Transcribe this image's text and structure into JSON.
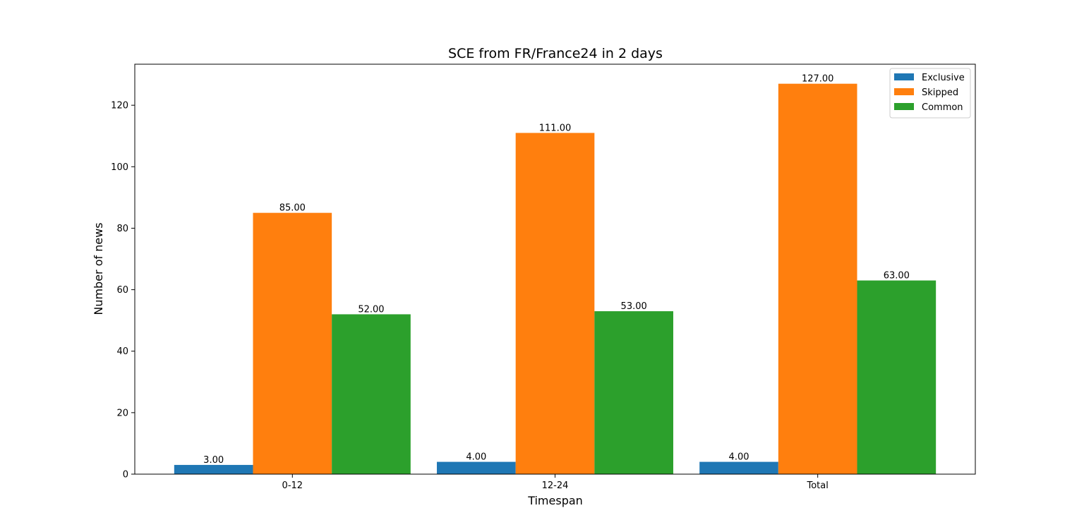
{
  "chart_data": {
    "type": "bar",
    "title": "SCE from FR/France24 in 2 days",
    "xlabel": "Timespan",
    "ylabel": "Number of news",
    "categories": [
      "0-12",
      "12-24",
      "Total"
    ],
    "series": [
      {
        "name": "Exclusive",
        "color": "#1f77b4",
        "values": [
          3,
          4,
          4
        ],
        "labels": [
          "3.00",
          "4.00",
          "4.00"
        ]
      },
      {
        "name": "Skipped",
        "color": "#ff7f0e",
        "values": [
          85,
          111,
          127
        ],
        "labels": [
          "85.00",
          "111.00",
          "127.00"
        ]
      },
      {
        "name": "Common",
        "color": "#2ca02c",
        "values": [
          52,
          53,
          63
        ],
        "labels": [
          "52.00",
          "53.00",
          "63.00"
        ]
      }
    ],
    "ylim": [
      0,
      133.35
    ],
    "yticks": [
      0,
      20,
      40,
      60,
      80,
      100,
      120
    ],
    "ytick_labels": [
      "0",
      "20",
      "40",
      "60",
      "80",
      "100",
      "120"
    ],
    "grid": false,
    "legend_position": "top-right"
  }
}
